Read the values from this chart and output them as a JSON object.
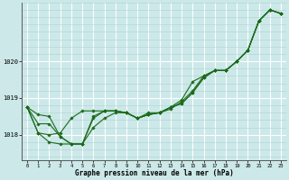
{
  "title": "Graphe pression niveau de la mer (hPa)",
  "bg_color": "#cce8e8",
  "grid_color_major": "#ffffff",
  "grid_color_minor": "#aad4d4",
  "line_color": "#1a6b1a",
  "xlim": [
    -0.5,
    23.5
  ],
  "ylim": [
    1017.3,
    1021.6
  ],
  "yticks": [
    1018,
    1019,
    1020
  ],
  "xticks": [
    0,
    1,
    2,
    3,
    4,
    5,
    6,
    7,
    8,
    9,
    10,
    11,
    12,
    13,
    14,
    15,
    16,
    17,
    18,
    19,
    20,
    21,
    22,
    23
  ],
  "series": [
    [
      1018.75,
      1018.55,
      1018.5,
      1017.95,
      1017.75,
      1017.75,
      1018.45,
      1018.65,
      1018.65,
      1018.6,
      1018.45,
      1018.6,
      1018.6,
      1018.75,
      1018.85,
      1019.15,
      1019.55,
      1019.75,
      1019.75,
      1020.0,
      1020.3,
      1021.1,
      1021.4,
      1021.3
    ],
    [
      1018.75,
      1018.3,
      1018.3,
      1017.95,
      1017.75,
      1017.75,
      1018.5,
      1018.65,
      1018.65,
      1018.6,
      1018.45,
      1018.55,
      1018.6,
      1018.7,
      1018.9,
      1019.2,
      1019.6,
      1019.75,
      1019.75,
      1020.0,
      1020.3,
      1021.1,
      1021.4,
      1021.3
    ],
    [
      1018.75,
      1018.05,
      1018.0,
      1018.05,
      1018.45,
      1018.65,
      1018.65,
      1018.65,
      1018.65,
      1018.6,
      1018.45,
      1018.55,
      1018.6,
      1018.75,
      1018.95,
      1019.45,
      1019.6,
      1019.75,
      1019.75,
      1020.0,
      1020.3,
      1021.1,
      1021.4,
      1021.3
    ],
    [
      1018.75,
      1018.05,
      1017.8,
      1017.75,
      1017.75,
      1017.75,
      1018.2,
      1018.45,
      1018.6,
      1018.6,
      1018.45,
      1018.55,
      1018.6,
      1018.75,
      1018.85,
      1019.15,
      1019.55,
      1019.75,
      1019.75,
      1020.0,
      1020.3,
      1021.1,
      1021.4,
      1021.3
    ]
  ]
}
